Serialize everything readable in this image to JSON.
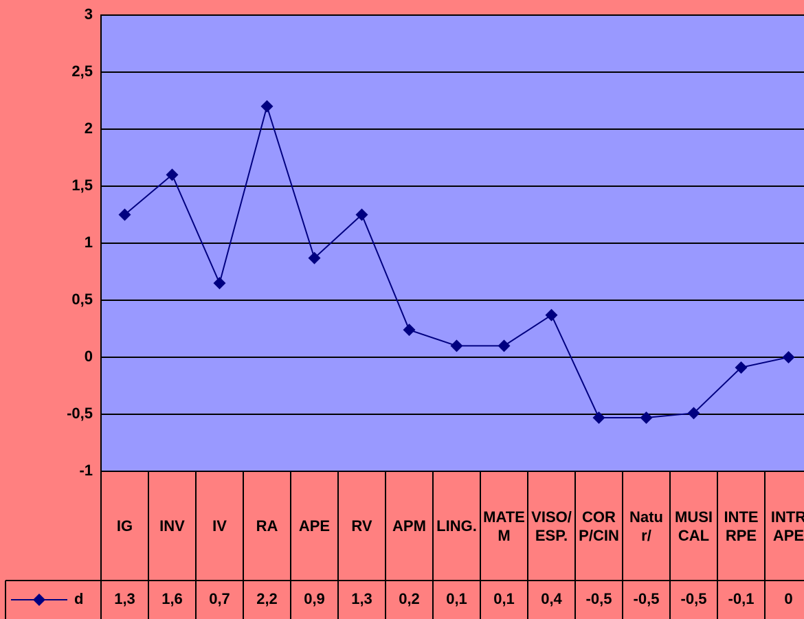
{
  "chart_data": {
    "type": "line",
    "categories": [
      "IG",
      "INV",
      "IV",
      "RA",
      "APE",
      "RV",
      "APM",
      "LING.",
      "MATEM",
      "VISO/ESP.",
      "CORP/CIN",
      "Natur/",
      "MUSICAL",
      "INTERPE",
      "INTRAPE"
    ],
    "series": [
      {
        "name": "d",
        "color": "#000080",
        "values": [
          1.25,
          1.6,
          0.65,
          2.2,
          0.87,
          1.25,
          0.24,
          0.1,
          0.1,
          0.37,
          -0.53,
          -0.53,
          -0.49,
          -0.09,
          0
        ],
        "value_labels": [
          "1,3",
          "1,6",
          "0,7",
          "2,2",
          "0,9",
          "1,3",
          "0,2",
          "0,1",
          "0,1",
          "0,4",
          "-0,5",
          "-0,5",
          "-0,5",
          "-0,1",
          "0"
        ]
      }
    ],
    "ylim": [
      -1,
      3
    ],
    "yticks": [
      -1,
      {
        "value": -0.5,
        "label": "-0,5"
      },
      0,
      {
        "value": 0.5,
        "label": "0,5"
      },
      1,
      {
        "value": 1.5,
        "label": "1,5"
      },
      2,
      {
        "value": 2.5,
        "label": "2,5"
      },
      3
    ],
    "grid": true,
    "background": "#ff8080",
    "plot_background": "#9999ff"
  }
}
